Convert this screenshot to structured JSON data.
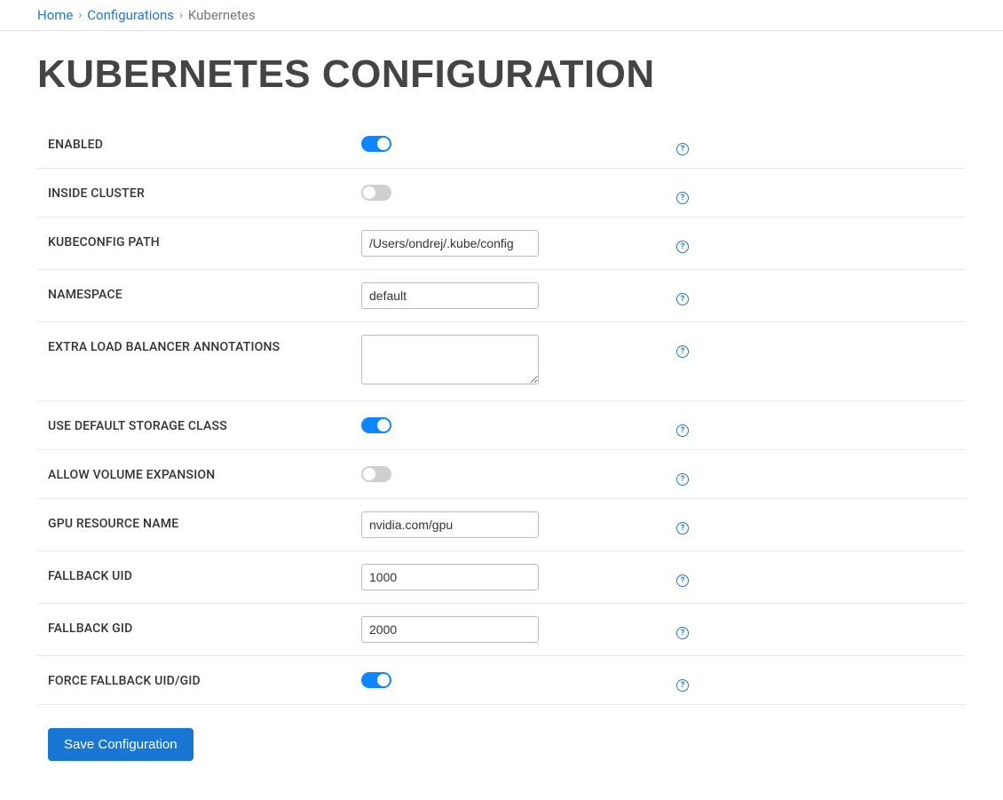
{
  "breadcrumb": {
    "home": "Home",
    "configurations": "Configurations",
    "current": "Kubernetes"
  },
  "page_title": "KUBERNETES CONFIGURATION",
  "fields": {
    "enabled": {
      "label": "Enabled",
      "value": true
    },
    "inside_cluster": {
      "label": "Inside Cluster",
      "value": false
    },
    "kubeconfig_path": {
      "label": "Kubeconfig Path",
      "value": "/Users/ondrej/.kube/config"
    },
    "namespace": {
      "label": "Namespace",
      "value": "default"
    },
    "extra_lb_annotations": {
      "label": "Extra Load Balancer Annotations",
      "value": ""
    },
    "use_default_storage_class": {
      "label": "Use Default Storage Class",
      "value": true
    },
    "allow_volume_expansion": {
      "label": "Allow Volume Expansion",
      "value": false
    },
    "gpu_resource_name": {
      "label": "GPU Resource Name",
      "value": "nvidia.com/gpu"
    },
    "fallback_uid": {
      "label": "Fallback UID",
      "value": "1000"
    },
    "fallback_gid": {
      "label": "Fallback GID",
      "value": "2000"
    },
    "force_fallback": {
      "label": "Force Fallback UID/GID",
      "value": true
    }
  },
  "save_button": "Save Configuration",
  "colors": {
    "link": "#2278cf",
    "toggle_on": "#0d86ff",
    "toggle_off": "#cfcfcf",
    "button_bg": "#1976d2",
    "border": "#eaeaea",
    "title": "#444"
  }
}
